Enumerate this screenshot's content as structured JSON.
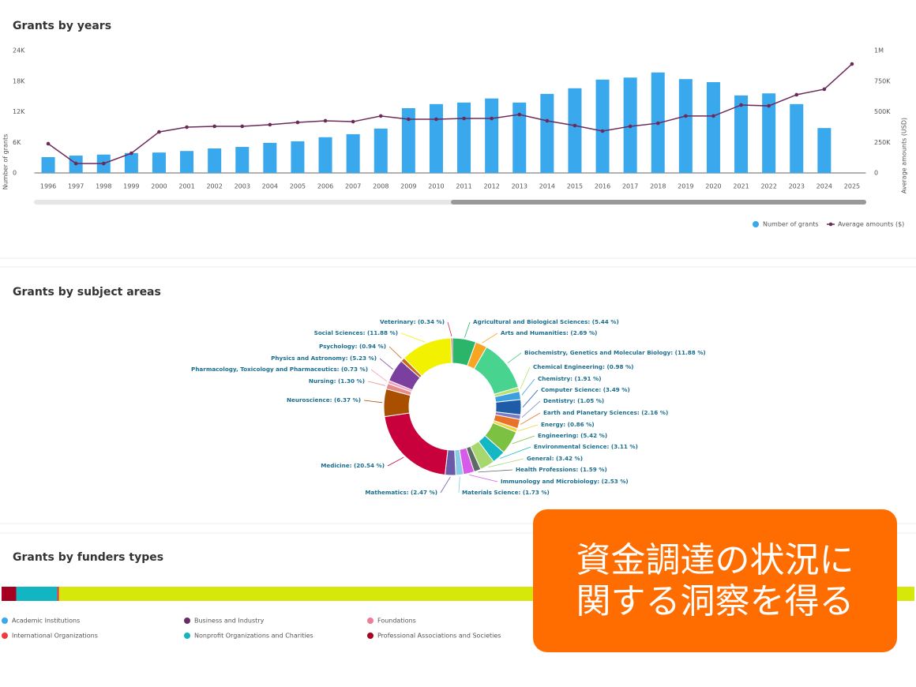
{
  "chart_data": [
    {
      "type": "bar-line",
      "title": "Grants by years",
      "categories": [
        "1996",
        "1997",
        "1998",
        "1999",
        "2000",
        "2001",
        "2002",
        "2003",
        "2004",
        "2005",
        "2006",
        "2007",
        "2008",
        "2009",
        "2010",
        "2011",
        "2012",
        "2013",
        "2014",
        "2015",
        "2016",
        "2017",
        "2018",
        "2019",
        "2020",
        "2021",
        "2022",
        "2023",
        "2024",
        "2025"
      ],
      "y_label": "Number of grants",
      "y2_label": "Average amounts (USD)",
      "ylim": [
        0,
        24000
      ],
      "yticks": [
        0,
        {
          "value": 6000,
          "label": "6K"
        },
        {
          "value": 12000,
          "label": "12K"
        },
        {
          "value": 18000,
          "label": "18K"
        },
        {
          "value": 24000,
          "label": "24K"
        }
      ],
      "y2lim": [
        0,
        1000000
      ],
      "y2ticks": [
        0,
        {
          "value": 250000,
          "label": "250K"
        },
        {
          "value": 500000,
          "label": "500K"
        },
        {
          "value": 750000,
          "label": "750K"
        },
        {
          "value": 1000000,
          "label": "1M"
        }
      ],
      "legend": "bottom-right",
      "series": [
        {
          "name": "Number of grants",
          "type": "bar",
          "color": "#3aa8ed",
          "values": [
            3100,
            3400,
            3600,
            3900,
            4000,
            4300,
            4800,
            5100,
            5900,
            6200,
            7000,
            7600,
            8700,
            12700,
            13500,
            13800,
            14600,
            13800,
            15500,
            16600,
            18300,
            18700,
            19700,
            18400,
            17800,
            15200,
            15600,
            13500,
            8800,
            null
          ]
        },
        {
          "name": "Average amounts ($)",
          "type": "line",
          "axis": "y2",
          "color": "#6b2a5a",
          "values": [
            239000,
            77000,
            77000,
            161000,
            335000,
            374000,
            381000,
            381000,
            394000,
            413000,
            426000,
            419000,
            465000,
            439000,
            439000,
            445000,
            445000,
            477000,
            426000,
            387000,
            342000,
            381000,
            406000,
            465000,
            465000,
            555000,
            548000,
            639000,
            684000,
            890000
          ]
        }
      ]
    },
    {
      "type": "donut",
      "title": "Grants by subject areas",
      "values": [
        5.44,
        2.69,
        11.88,
        0.98,
        1.91,
        3.49,
        1.05,
        2.16,
        0.86,
        5.42,
        3.11,
        3.42,
        1.59,
        2.53,
        1.73,
        2.47,
        20.54,
        6.37,
        1.3,
        0.73,
        5.23,
        0.94,
        11.88,
        0.34
      ],
      "value_labels": [
        "Agricultural and Biological Sciences: (5.44 %)",
        "Arts and Humanities: (2.69 %)",
        "Biochemistry, Genetics and Molecular Biology: (11.88 %)",
        "Chemical Engineering: (0.98 %)",
        "Chemistry: (1.91 %)",
        "Computer Science: (3.49 %)",
        "Dentistry: (1.05 %)",
        "Earth and Planetary Sciences: (2.16 %)",
        "Energy: (0.86 %)",
        "Engineering: (5.42 %)",
        "Environmental Science: (3.11 %)",
        "General: (3.42 %)",
        "Health Professions: (1.59 %)",
        "Immunology and Microbiology: (2.53 %)",
        "Materials Science: (1.73 %)",
        "Mathematics: (2.47 %)",
        "Medicine: (20.54 %)",
        "Neuroscience: (6.37 %)",
        "Nursing: (1.30 %)",
        "Pharmacology, Toxicology and Pharmaceutics: (0.73 %)",
        "Physics and Astronomy: (5.23 %)",
        "Psychology: (0.94 %)",
        "Social Sciences: (11.88 %)",
        "Veterinary: (0.34 %)"
      ],
      "colors": [
        "#2bb56a",
        "#f6a623",
        "#48d38f",
        "#b5e36b",
        "#3e9fe0",
        "#1e5ca8",
        "#7a7dc4",
        "#e8722a",
        "#f2d43d",
        "#7cc142",
        "#13b8c4",
        "#a7d870",
        "#5d6a68",
        "#d65be8",
        "#8ccbe8",
        "#6a5aa8",
        "#c8003c",
        "#a84f00",
        "#e88a8a",
        "#f0a0c0",
        "#7b3fa0",
        "#c86a1a",
        "#f2f200",
        "#e0245e"
      ]
    },
    {
      "type": "stacked-bar",
      "title": "Grants by funders types",
      "xlim": [
        0,
        100
      ],
      "series": [
        {
          "name": "Professional Associations and Societies",
          "color": "#a50021",
          "values": [
            1.6
          ]
        },
        {
          "name": "Nonprofit Organizations and Charities",
          "color": "#12b5c1",
          "values": [
            4.5
          ]
        },
        {
          "name": "International Organizations",
          "color": "#f03c3c",
          "values": [
            0.2
          ]
        },
        {
          "name": "Academic Institutions",
          "color": "#3aa8ed",
          "values": [
            0
          ]
        },
        {
          "name": "Business and Industry",
          "color": "#6b2a6a",
          "values": [
            0
          ]
        },
        {
          "name": "Foundations",
          "color": "#f07c98",
          "values": [
            0
          ]
        },
        {
          "name": null,
          "color": "#d6e80a",
          "values": [
            93.7
          ]
        }
      ]
    }
  ],
  "callout": {
    "lines": [
      "資金調達の状況に",
      "関する洞察を得る"
    ]
  }
}
